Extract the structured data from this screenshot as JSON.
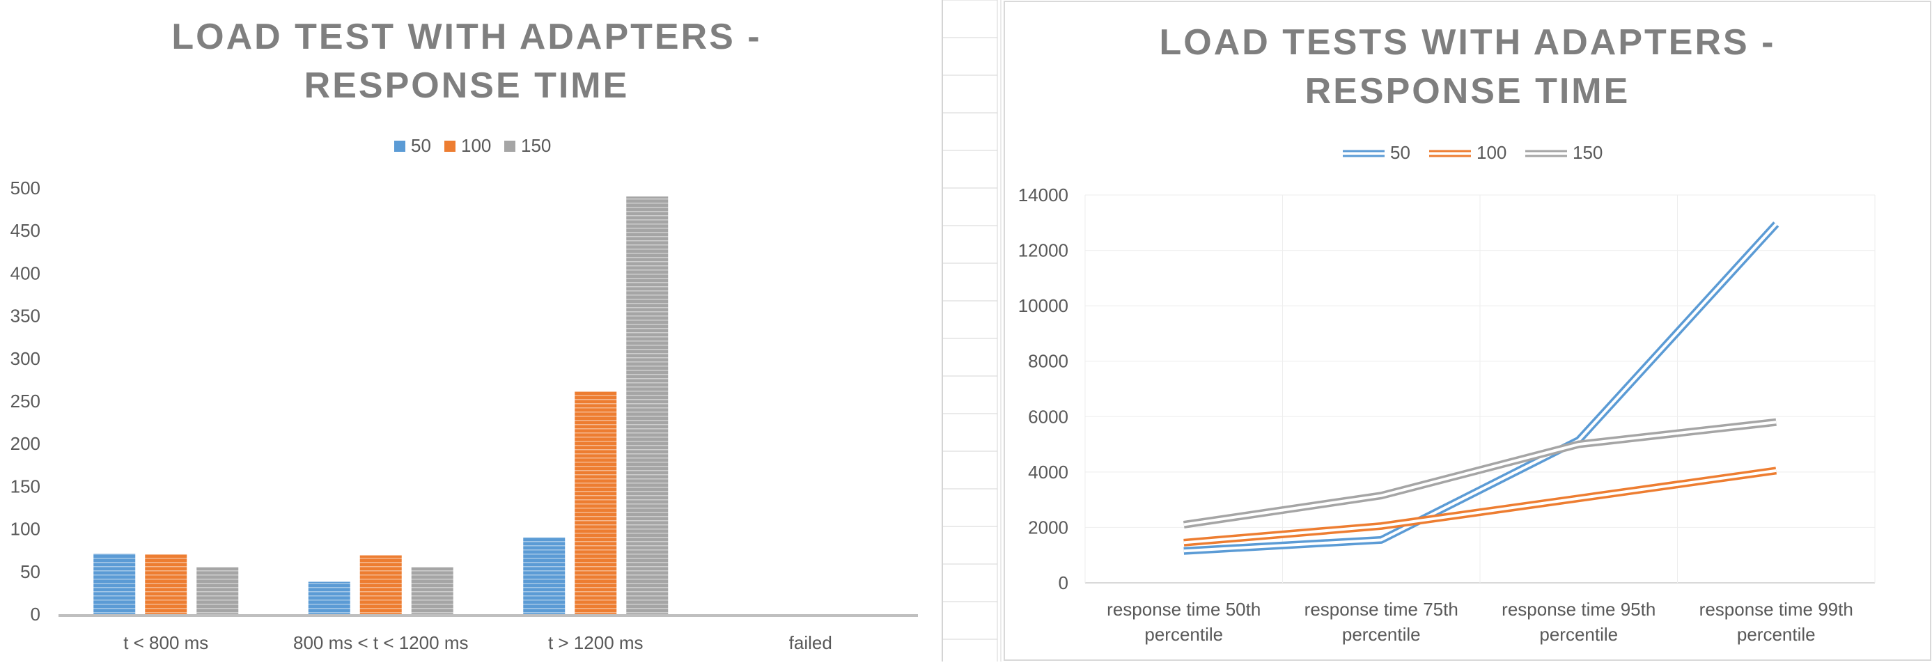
{
  "charts": [
    {
      "type": "bar",
      "title": "LOAD TEST WITH ADAPTERS -",
      "title_line2": "RESPONSE TIME",
      "categories": [
        "t < 800 ms",
        "800 ms < t < 1200 ms",
        "t > 1200 ms",
        "failed"
      ],
      "series": [
        {
          "name": "50",
          "values": [
            71,
            38,
            90,
            0
          ],
          "color": "#5B9BD5"
        },
        {
          "name": "100",
          "values": [
            70,
            69,
            261,
            0
          ],
          "color": "#ED7D31"
        },
        {
          "name": "150",
          "values": [
            55,
            55,
            490,
            0
          ],
          "color": "#A5A5A5"
        }
      ],
      "ylim": [
        0,
        500
      ],
      "yticks": [
        0,
        50,
        100,
        150,
        200,
        250,
        300,
        350,
        400,
        450,
        500
      ],
      "legend": "top",
      "grid": false
    },
    {
      "type": "line",
      "title": "LOAD TESTS WITH ADAPTERS -",
      "title_line2": "RESPONSE TIME",
      "categories": [
        [
          "response time 50th",
          "percentile"
        ],
        [
          "response time 75th",
          "percentile"
        ],
        [
          "response time 95th",
          "percentile"
        ],
        [
          "response time 99th",
          "percentile"
        ]
      ],
      "series": [
        {
          "name": "50",
          "values": [
            1150,
            1550,
            5150,
            12950
          ],
          "color": "#5B9BD5"
        },
        {
          "name": "100",
          "values": [
            1450,
            2050,
            3050,
            4050
          ],
          "color": "#ED7D31"
        },
        {
          "name": "150",
          "values": [
            2100,
            3150,
            5000,
            5800
          ],
          "color": "#A5A5A5"
        }
      ],
      "ylim": [
        0,
        14000
      ],
      "yticks": [
        0,
        2000,
        4000,
        6000,
        8000,
        10000,
        12000,
        14000
      ],
      "legend": "top",
      "grid": true
    }
  ]
}
